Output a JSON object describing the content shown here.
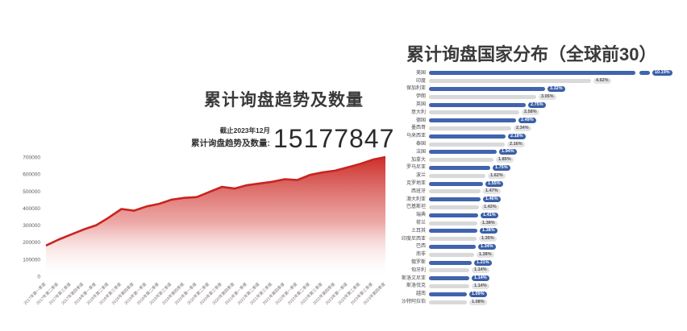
{
  "left_panel": {
    "title": "累计询盘趋势及数量",
    "stat": {
      "as_of": "截止2023年12月",
      "label": "累计询盘趋势及数量:",
      "value": "15177847"
    }
  },
  "right_panel": {
    "title": "累计询盘国家分布（全球前30）"
  },
  "colors": {
    "area_red": "#c9241f",
    "bar_blue": "#4064ad",
    "bar_gray": "#d9d9d9",
    "badge_blue": "#3a5fa8",
    "badge_gray": "#e4e4e4"
  },
  "chart_data": [
    {
      "type": "area",
      "title": "累计询盘趋势及数量",
      "xlabel": "",
      "ylabel": "",
      "ylim": [
        0,
        700000
      ],
      "yticks": [
        "0",
        "100000",
        "200000",
        "300000",
        "400000",
        "500000",
        "600000",
        "700000"
      ],
      "grid": false,
      "legend": "none",
      "series_color": "#c9241f",
      "categories": [
        "2017年第一季度",
        "2017年第二季度",
        "2017年第三季度",
        "2017年第四季度",
        "2018年第一季度",
        "2018年第二季度",
        "2018年第三季度",
        "2018年第四季度",
        "2019年第一季度",
        "2019年第二季度",
        "2019年第三季度",
        "2019年第四季度",
        "2020年第一季度",
        "2020年第二季度",
        "2020年第三季度",
        "2020年第四季度",
        "2021年第一季度",
        "2021年第二季度",
        "2021年第三季度",
        "2021年第四季度",
        "2022年第一季度",
        "2022年第二季度",
        "2022年第三季度",
        "2022年第四季度",
        "2023年第一季度",
        "2023年第二季度",
        "2023年第三季度",
        "2023年第四季度"
      ],
      "values": [
        180000,
        215000,
        245000,
        275000,
        300000,
        345000,
        395000,
        385000,
        410000,
        425000,
        450000,
        460000,
        465000,
        495000,
        525000,
        515000,
        535000,
        545000,
        555000,
        570000,
        565000,
        595000,
        610000,
        620000,
        640000,
        660000,
        685000,
        700000
      ]
    },
    {
      "type": "bar",
      "orientation": "horizontal",
      "title": "累计询盘国家分布（全球前30）",
      "unit": "%",
      "legend": "none",
      "grid": false,
      "axis_break_row": 0,
      "categories": [
        "美国",
        "印度",
        "保加利亚",
        "伊朗",
        "英国",
        "意大利",
        "德国",
        "墨西哥",
        "马来西亚",
        "泰国",
        "法国",
        "加拿大",
        "罗马尼亚",
        "波兰",
        "克罗地亚",
        "西班牙",
        "澳大利亚",
        "巴基斯坦",
        "瑞典",
        "荷兰",
        "土耳其",
        "印度尼西亚",
        "巴西",
        "南非",
        "俄罗斯",
        "匈牙利",
        "斯洛文尼亚",
        "斯洛伐克",
        "越南",
        "沙特阿拉伯"
      ],
      "values": [
        10.19,
        4.62,
        3.32,
        3.05,
        2.75,
        2.58,
        2.49,
        2.34,
        2.18,
        2.16,
        1.94,
        1.85,
        1.75,
        1.62,
        1.55,
        1.47,
        1.46,
        1.43,
        1.41,
        1.38,
        1.38,
        1.35,
        1.34,
        1.28,
        1.21,
        1.14,
        1.14,
        1.14,
        1.09,
        1.08
      ],
      "value_labels": [
        "10.19%",
        "4.62%",
        "3.32%",
        "3.05%",
        "2.75%",
        "2.58%",
        "2.49%",
        "2.34%",
        "2.18%",
        "2.16%",
        "1.94%",
        "1.85%",
        "1.75%",
        "1.62%",
        "1.55%",
        "1.47%",
        "1.46%",
        "1.43%",
        "1.41%",
        "1.38%",
        "1.38%",
        "1.35%",
        "1.34%",
        "1.28%",
        "1.21%",
        "1.14%",
        "1.14%",
        "1.14%",
        "1.09%",
        "1.08%"
      ]
    }
  ]
}
